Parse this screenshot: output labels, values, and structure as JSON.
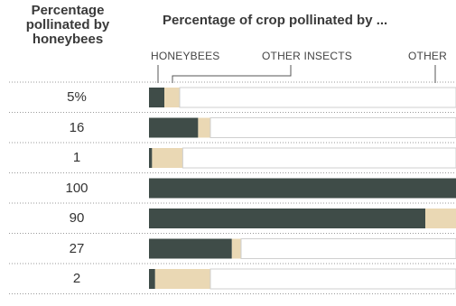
{
  "header": {
    "left_title": "Percentage\npollinated by\nhoneybees",
    "right_title": "Percentage of crop pollinated by ..."
  },
  "legend": [
    "HONEYBEES",
    "OTHER INSECTS",
    "OTHER"
  ],
  "colors": {
    "honeybees": "#3f4c48",
    "other_insects": "#ead8b4",
    "other": "#ffffff",
    "divider": "#9a9a9a"
  },
  "chart_data": {
    "type": "bar",
    "stacked": true,
    "orientation": "horizontal",
    "title": "Percentage of crop pollinated by ...",
    "row_labels": [
      "5%",
      "16",
      "1",
      "100",
      "90",
      "27",
      "2"
    ],
    "series": [
      {
        "name": "HONEYBEES",
        "values": [
          5,
          16,
          1,
          100,
          90,
          27,
          2
        ]
      },
      {
        "name": "OTHER INSECTS",
        "values": [
          5,
          4,
          10,
          0,
          10,
          3,
          18
        ]
      },
      {
        "name": "OTHER",
        "values": [
          90,
          80,
          89,
          0,
          0,
          70,
          80
        ]
      }
    ],
    "xlim": [
      0,
      100
    ]
  }
}
